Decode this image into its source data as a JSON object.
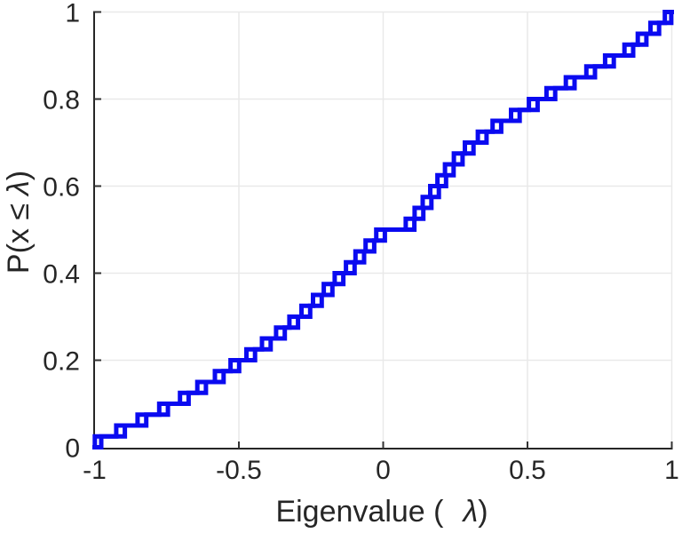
{
  "chart_data": {
    "type": "line",
    "variant": "empirical_cdf_staircase",
    "title": "",
    "xlabel": "Eigenvalue ( λ)",
    "ylabel": "P(x ≤ λ)",
    "xlim": [
      -1,
      1
    ],
    "ylim": [
      0,
      1
    ],
    "grid": true,
    "legend": "none",
    "background_color": "#ffffff",
    "axis_color": "#262626",
    "grid_color": "#e9e9e9",
    "line_color": "#0a0af0",
    "xticks": {
      "values": [
        -1,
        -0.5,
        0,
        0.5,
        1
      ],
      "labels": [
        "-1",
        "-0.5",
        "0",
        "0.5",
        "1"
      ]
    },
    "yticks": {
      "values": [
        0,
        0.2,
        0.4,
        0.6,
        0.8,
        1
      ],
      "labels": [
        "0",
        "0.2",
        "0.4",
        "0.6",
        "0.8",
        "1"
      ]
    },
    "n_points_per_series": 40,
    "series": [
      {
        "name": "ecdf-curve-a",
        "color": "#0a0af0",
        "step_x": [
          -0.999,
          -0.925,
          -0.851,
          -0.776,
          -0.704,
          -0.644,
          -0.583,
          -0.529,
          -0.474,
          -0.42,
          -0.371,
          -0.325,
          -0.283,
          -0.243,
          -0.206,
          -0.168,
          -0.129,
          -0.096,
          -0.061,
          -0.024,
          0.078,
          0.109,
          0.137,
          0.163,
          0.188,
          0.214,
          0.245,
          0.283,
          0.328,
          0.379,
          0.443,
          0.505,
          0.566,
          0.633,
          0.704,
          0.769,
          0.836,
          0.882,
          0.926,
          0.976
        ]
      },
      {
        "name": "ecdf-curve-b",
        "color": "#0a0af0",
        "step_x": [
          -0.977,
          -0.895,
          -0.821,
          -0.746,
          -0.674,
          -0.614,
          -0.553,
          -0.499,
          -0.444,
          -0.39,
          -0.341,
          -0.295,
          -0.253,
          -0.213,
          -0.176,
          -0.138,
          -0.099,
          -0.066,
          -0.031,
          0.006,
          0.108,
          0.139,
          0.167,
          0.193,
          0.218,
          0.244,
          0.275,
          0.313,
          0.358,
          0.409,
          0.473,
          0.535,
          0.596,
          0.663,
          0.734,
          0.799,
          0.866,
          0.912,
          0.956,
          0.998
        ]
      }
    ]
  },
  "labels": {
    "xlabel_pre": "Eigenvalue (",
    "xlabel_lambda": "λ",
    "xlabel_post": ")",
    "ylabel_pre": "P(x ≤",
    "ylabel_lambda": "λ",
    "ylabel_post": ")"
  }
}
